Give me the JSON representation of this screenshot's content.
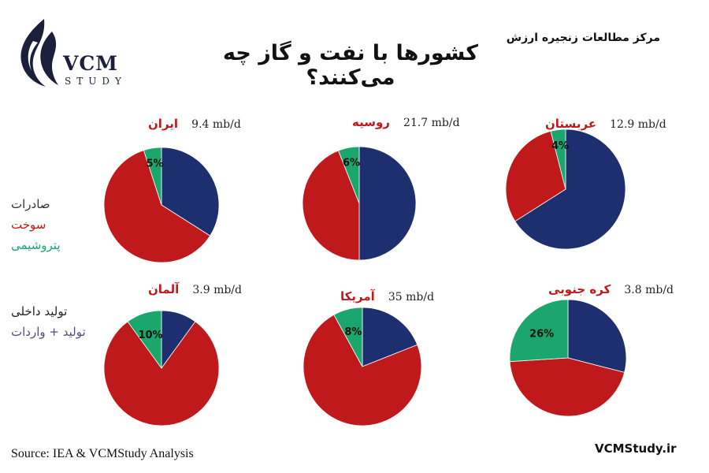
{
  "logo": {
    "brand": "VCM",
    "sub": "STUDY"
  },
  "title": "کشورها با نفت و گاز چه می‌کنند؟",
  "center_name": "مرکز مطالعات زنجیره ارزش",
  "legend_top": [
    {
      "label": "صادرات",
      "color": "#333333"
    },
    {
      "label": "سوخت",
      "color": "#c0191b"
    },
    {
      "label": "پتروشیمی",
      "color": "#1aa66c"
    }
  ],
  "legend_bottom": [
    {
      "label": "تولید داخلی",
      "color": "#222222"
    },
    {
      "label": "تولید + واردات",
      "color": "#5a4a7c"
    }
  ],
  "source": "Source: IEA & VCMStudy Analysis",
  "website": "VCMStudy.ir",
  "chart_data": [
    {
      "type": "pie",
      "title": "ایران",
      "production": "9.4 mb/d",
      "categories": [
        "صادرات",
        "سوخت",
        "پتروشیمی"
      ],
      "values": [
        34,
        61,
        5
      ],
      "colors": [
        "#1d2f6f",
        "#c0191b",
        "#1aa66c"
      ],
      "label_index": 2,
      "data_label": "5%"
    },
    {
      "type": "pie",
      "title": "روسیه",
      "production": "21.7 mb/d",
      "categories": [
        "صادرات",
        "سوخت",
        "پتروشیمی"
      ],
      "values": [
        50,
        44,
        6
      ],
      "colors": [
        "#1d2f6f",
        "#c0191b",
        "#1aa66c"
      ],
      "label_index": 2,
      "data_label": "6%"
    },
    {
      "type": "pie",
      "title": "عربستان",
      "production": "12.9 mb/d",
      "categories": [
        "صادرات",
        "سوخت",
        "پتروشیمی"
      ],
      "values": [
        66,
        30,
        4
      ],
      "colors": [
        "#1d2f6f",
        "#c0191b",
        "#1aa66c"
      ],
      "label_index": 2,
      "data_label": "4%"
    },
    {
      "type": "pie",
      "title": "آلمان",
      "production": "3.9 mb/d",
      "categories": [
        "صادرات",
        "سوخت",
        "پتروشیمی"
      ],
      "values": [
        10,
        80,
        10
      ],
      "colors": [
        "#1d2f6f",
        "#c0191b",
        "#1aa66c"
      ],
      "label_index": 2,
      "data_label": "10%"
    },
    {
      "type": "pie",
      "title": "آمریکا",
      "production": "35 mb/d",
      "categories": [
        "صادرات",
        "سوخت",
        "پتروشیمی"
      ],
      "values": [
        19,
        73,
        8
      ],
      "colors": [
        "#1d2f6f",
        "#c0191b",
        "#1aa66c"
      ],
      "label_index": 2,
      "data_label": "8%"
    },
    {
      "type": "pie",
      "title": "کره جنوبی",
      "production": "3.8 mb/d",
      "categories": [
        "صادرات",
        "سوخت",
        "پتروشیمی"
      ],
      "values": [
        29,
        45,
        26
      ],
      "colors": [
        "#1d2f6f",
        "#c0191b",
        "#1aa66c"
      ],
      "label_index": 2,
      "data_label": "26%"
    }
  ]
}
